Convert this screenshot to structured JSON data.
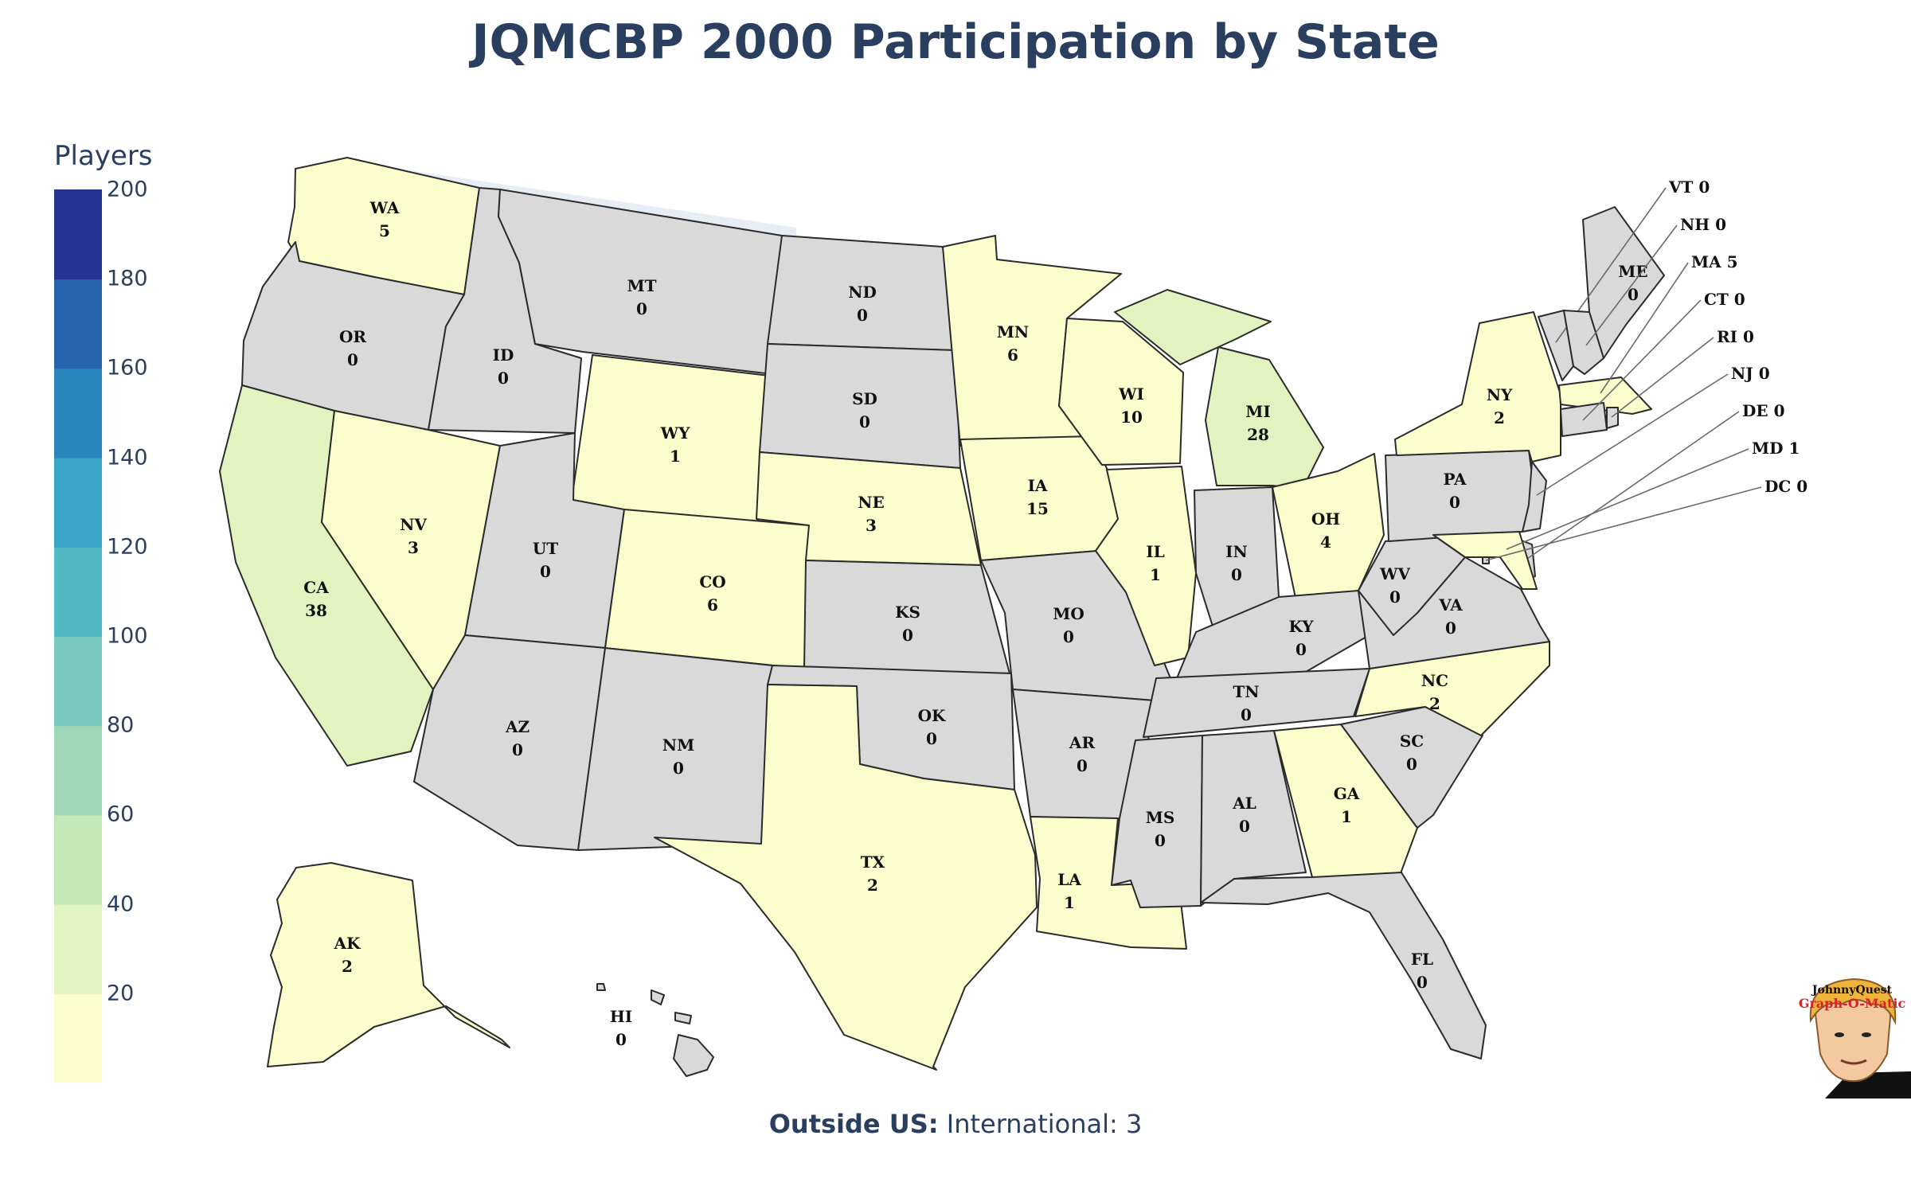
{
  "title": "JQMCBP 2000 Participation by State",
  "colorbar": {
    "title": "Players",
    "range": [
      0,
      200
    ],
    "ticks": [
      "20",
      "40",
      "60",
      "80",
      "100",
      "120",
      "140",
      "160",
      "180",
      "200"
    ],
    "scale": [
      "#fbfdcc",
      "#e3f3c0",
      "#c4e8b8",
      "#9fd8b8",
      "#78c8bc",
      "#52b8c4",
      "#37a4c8",
      "#2a87be",
      "#2563ac",
      "#253494"
    ]
  },
  "colors": {
    "zero_fill": "#d9d9d9",
    "ocean": "#e6edf5",
    "title": "#2a3f5f"
  },
  "states": [
    {
      "code": "WA",
      "value": 5
    },
    {
      "code": "OR",
      "value": 0
    },
    {
      "code": "CA",
      "value": 38
    },
    {
      "code": "ID",
      "value": 0
    },
    {
      "code": "NV",
      "value": 3
    },
    {
      "code": "MT",
      "value": 0
    },
    {
      "code": "WY",
      "value": 1
    },
    {
      "code": "UT",
      "value": 0
    },
    {
      "code": "AZ",
      "value": 0
    },
    {
      "code": "CO",
      "value": 6
    },
    {
      "code": "NM",
      "value": 0
    },
    {
      "code": "ND",
      "value": 0
    },
    {
      "code": "SD",
      "value": 0
    },
    {
      "code": "NE",
      "value": 3
    },
    {
      "code": "KS",
      "value": 0
    },
    {
      "code": "OK",
      "value": 0
    },
    {
      "code": "TX",
      "value": 2
    },
    {
      "code": "MN",
      "value": 6
    },
    {
      "code": "IA",
      "value": 15
    },
    {
      "code": "MO",
      "value": 0
    },
    {
      "code": "AR",
      "value": 0
    },
    {
      "code": "LA",
      "value": 1
    },
    {
      "code": "WI",
      "value": 10
    },
    {
      "code": "IL",
      "value": 1
    },
    {
      "code": "MI",
      "value": 28
    },
    {
      "code": "IN",
      "value": 0
    },
    {
      "code": "OH",
      "value": 4
    },
    {
      "code": "KY",
      "value": 0
    },
    {
      "code": "TN",
      "value": 0
    },
    {
      "code": "MS",
      "value": 0
    },
    {
      "code": "AL",
      "value": 0
    },
    {
      "code": "GA",
      "value": 1
    },
    {
      "code": "FL",
      "value": 0
    },
    {
      "code": "SC",
      "value": 0
    },
    {
      "code": "NC",
      "value": 2
    },
    {
      "code": "VA",
      "value": 0
    },
    {
      "code": "WV",
      "value": 0
    },
    {
      "code": "PA",
      "value": 0
    },
    {
      "code": "NY",
      "value": 2
    },
    {
      "code": "ME",
      "value": 0
    },
    {
      "code": "AK",
      "value": 2
    },
    {
      "code": "HI",
      "value": 0
    },
    {
      "code": "VT",
      "value": 0
    },
    {
      "code": "NH",
      "value": 0
    },
    {
      "code": "MA",
      "value": 5
    },
    {
      "code": "CT",
      "value": 0
    },
    {
      "code": "RI",
      "value": 0
    },
    {
      "code": "NJ",
      "value": 0
    },
    {
      "code": "DE",
      "value": 0
    },
    {
      "code": "MD",
      "value": 1
    },
    {
      "code": "DC",
      "value": 0
    }
  ],
  "footer": {
    "prefix": "Outside US:",
    "text": "International: 3"
  },
  "logo": {
    "line1": "JohnnyQuest",
    "line2": "Graph-O-Matic"
  }
}
